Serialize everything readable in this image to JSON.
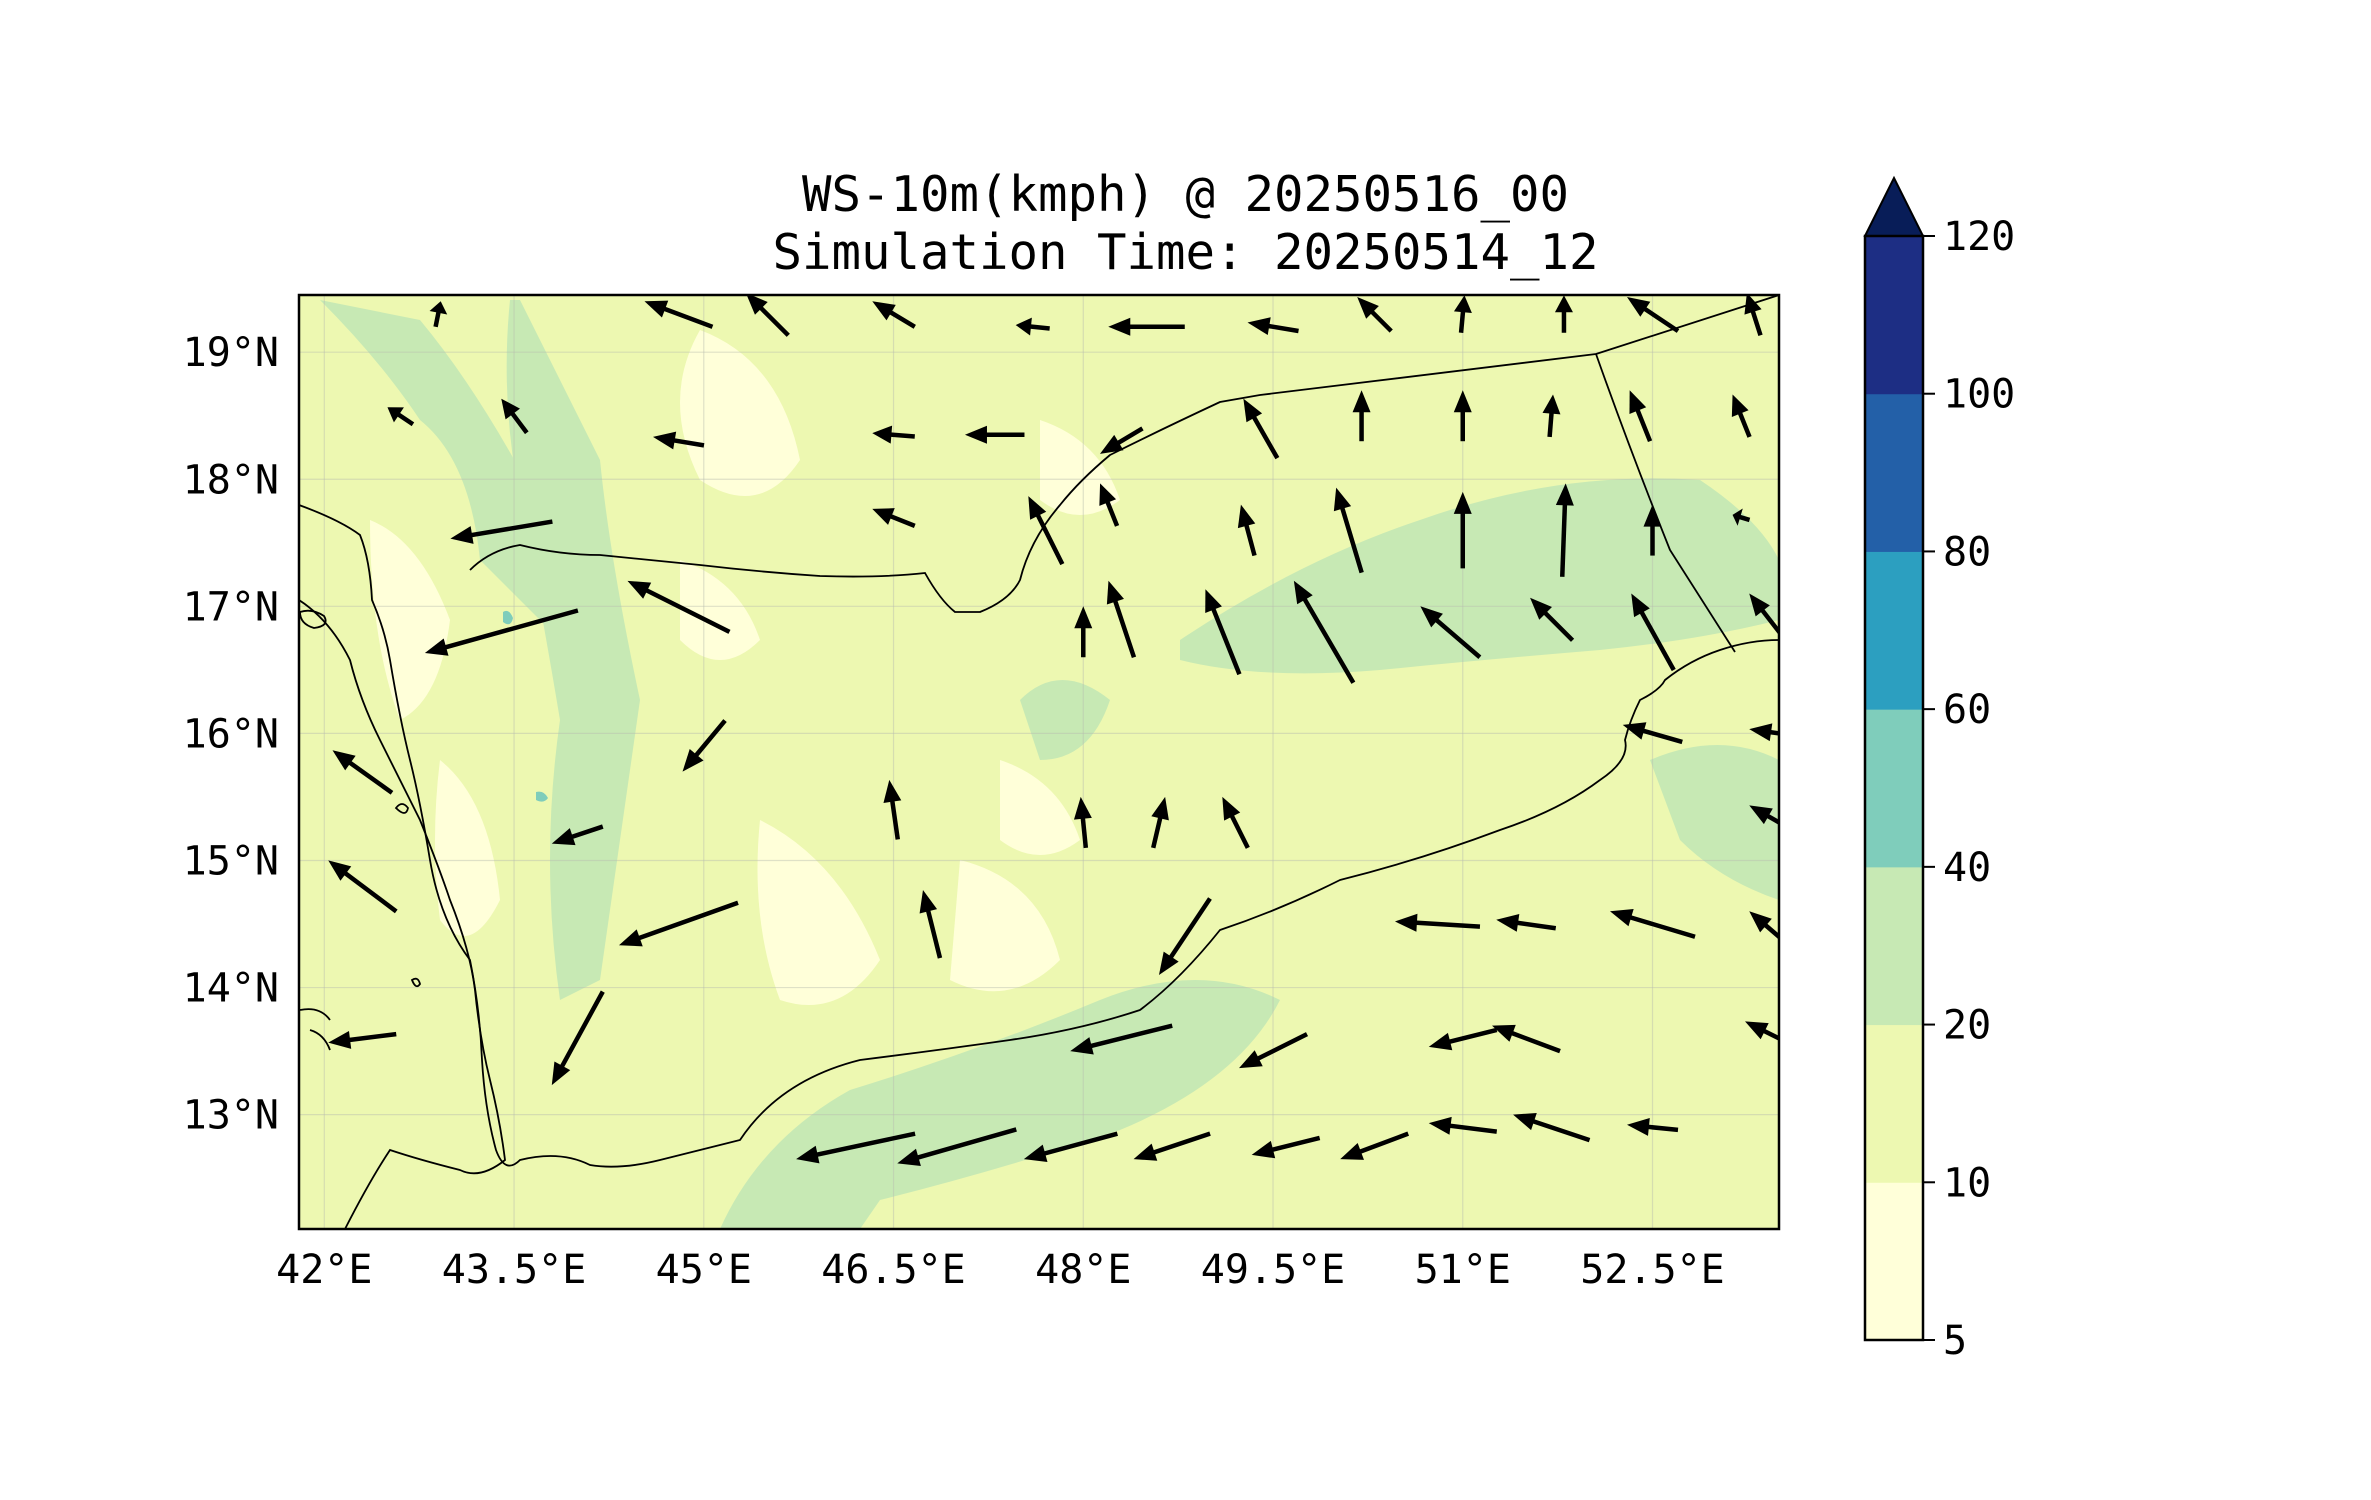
{
  "title": {
    "line1": "WS-10m(kmph) @ 20250516_00",
    "line2": "Simulation Time: 20250514_12"
  },
  "map": {
    "lon_range": [
      41.8,
      53.5
    ],
    "lat_range": [
      12.1,
      19.45
    ],
    "x_ticks": [
      {
        "value": 42.0,
        "label": "42°E"
      },
      {
        "value": 43.5,
        "label": "43.5°E"
      },
      {
        "value": 45.0,
        "label": "45°E"
      },
      {
        "value": 46.5,
        "label": "46.5°E"
      },
      {
        "value": 48.0,
        "label": "48°E"
      },
      {
        "value": 49.5,
        "label": "49.5°E"
      },
      {
        "value": 51.0,
        "label": "51°E"
      },
      {
        "value": 52.5,
        "label": "52.5°E"
      }
    ],
    "y_ticks": [
      {
        "value": 13,
        "label": "13°N"
      },
      {
        "value": 14,
        "label": "14°N"
      },
      {
        "value": 15,
        "label": "15°N"
      },
      {
        "value": 16,
        "label": "16°N"
      },
      {
        "value": 17,
        "label": "17°N"
      },
      {
        "value": 18,
        "label": "18°N"
      },
      {
        "value": 19,
        "label": "19°N"
      }
    ],
    "gridlines": true
  },
  "colorbar": {
    "levels": [
      5,
      10,
      20,
      40,
      60,
      80,
      100,
      120
    ],
    "labels": [
      "5",
      "10",
      "20",
      "40",
      "60",
      "80",
      "100",
      "120"
    ],
    "colors": [
      "#ffffd9",
      "#edf8b1",
      "#c7e9b4",
      "#7fcdbb",
      "#2c9fc0",
      "#2360a8",
      "#1d2e84"
    ],
    "extend_color": "#081d58",
    "extend": "max"
  },
  "chart_data": {
    "type": "quiver-map",
    "variable": "WS-10m",
    "units": "kmph",
    "valid_time": "20250516_00",
    "simulation_time": "20250514_12",
    "vectors": [
      {
        "lon": 42.9,
        "lat": 19.3,
        "u": 0.3,
        "v": 1.5
      },
      {
        "lon": 44.8,
        "lat": 19.3,
        "u": -4.0,
        "v": 1.5
      },
      {
        "lon": 45.5,
        "lat": 19.3,
        "u": -2.5,
        "v": 2.5
      },
      {
        "lon": 46.5,
        "lat": 19.3,
        "u": -2.5,
        "v": 1.5
      },
      {
        "lon": 47.6,
        "lat": 19.2,
        "u": -2.0,
        "v": 0.2
      },
      {
        "lon": 48.5,
        "lat": 19.2,
        "u": -4.5,
        "v": 0.0
      },
      {
        "lon": 49.5,
        "lat": 19.2,
        "u": -3.0,
        "v": 0.5
      },
      {
        "lon": 50.3,
        "lat": 19.3,
        "u": -2.0,
        "v": 2.0
      },
      {
        "lon": 51.0,
        "lat": 19.3,
        "u": 0.2,
        "v": 2.2
      },
      {
        "lon": 51.8,
        "lat": 19.3,
        "u": 0.0,
        "v": 2.2
      },
      {
        "lon": 52.5,
        "lat": 19.3,
        "u": -3.0,
        "v": 2.0
      },
      {
        "lon": 53.3,
        "lat": 19.3,
        "u": -0.8,
        "v": 2.5
      },
      {
        "lon": 42.6,
        "lat": 18.5,
        "u": -1.5,
        "v": 1.0
      },
      {
        "lon": 43.5,
        "lat": 18.5,
        "u": -1.5,
        "v": 2.0
      },
      {
        "lon": 44.8,
        "lat": 18.3,
        "u": -3.0,
        "v": 0.5
      },
      {
        "lon": 46.5,
        "lat": 18.35,
        "u": -2.5,
        "v": 0.2
      },
      {
        "lon": 47.3,
        "lat": 18.35,
        "u": -3.5,
        "v": 0.0
      },
      {
        "lon": 48.3,
        "lat": 18.3,
        "u": -2.5,
        "v": -1.5
      },
      {
        "lon": 49.4,
        "lat": 18.4,
        "u": -2.0,
        "v": 3.5
      },
      {
        "lon": 50.2,
        "lat": 18.5,
        "u": 0.0,
        "v": 3.0
      },
      {
        "lon": 51.0,
        "lat": 18.5,
        "u": 0.0,
        "v": 3.0
      },
      {
        "lon": 51.7,
        "lat": 18.5,
        "u": 0.2,
        "v": 2.5
      },
      {
        "lon": 52.4,
        "lat": 18.5,
        "u": -1.2,
        "v": 3.0
      },
      {
        "lon": 53.2,
        "lat": 18.5,
        "u": -1.0,
        "v": 2.5
      },
      {
        "lon": 43.4,
        "lat": 17.6,
        "u": -6.0,
        "v": -1.0
      },
      {
        "lon": 46.5,
        "lat": 17.7,
        "u": -2.5,
        "v": 1.0
      },
      {
        "lon": 47.7,
        "lat": 17.6,
        "u": -2.0,
        "v": 4.0
      },
      {
        "lon": 48.2,
        "lat": 17.8,
        "u": -1.0,
        "v": 2.5
      },
      {
        "lon": 49.3,
        "lat": 17.6,
        "u": -0.8,
        "v": 3.0
      },
      {
        "lon": 50.1,
        "lat": 17.6,
        "u": -1.5,
        "v": 5.0
      },
      {
        "lon": 51.0,
        "lat": 17.6,
        "u": 0.0,
        "v": 4.5
      },
      {
        "lon": 51.8,
        "lat": 17.6,
        "u": 0.2,
        "v": 5.5
      },
      {
        "lon": 52.5,
        "lat": 17.6,
        "u": 0.0,
        "v": 3.0
      },
      {
        "lon": 53.2,
        "lat": 17.7,
        "u": -1.0,
        "v": 0.3
      },
      {
        "lon": 44.8,
        "lat": 17.0,
        "u": -6.0,
        "v": 3.0
      },
      {
        "lon": 43.4,
        "lat": 16.8,
        "u": -9.0,
        "v": -2.5
      },
      {
        "lon": 48.0,
        "lat": 16.8,
        "u": 0.0,
        "v": 3.0
      },
      {
        "lon": 48.3,
        "lat": 16.9,
        "u": -1.5,
        "v": 4.5
      },
      {
        "lon": 49.1,
        "lat": 16.8,
        "u": -2.0,
        "v": 5.0
      },
      {
        "lon": 49.9,
        "lat": 16.8,
        "u": -3.5,
        "v": 6.0
      },
      {
        "lon": 50.9,
        "lat": 16.8,
        "u": -3.5,
        "v": 3.0
      },
      {
        "lon": 51.7,
        "lat": 16.9,
        "u": -2.5,
        "v": 2.5
      },
      {
        "lon": 52.5,
        "lat": 16.8,
        "u": -2.5,
        "v": 4.5
      },
      {
        "lon": 53.5,
        "lat": 16.8,
        "u": -3.5,
        "v": 4.5
      },
      {
        "lon": 42.3,
        "lat": 15.7,
        "u": -3.5,
        "v": 2.5
      },
      {
        "lon": 45.0,
        "lat": 15.9,
        "u": -2.5,
        "v": -3.0
      },
      {
        "lon": 46.5,
        "lat": 15.4,
        "u": -0.5,
        "v": 3.5
      },
      {
        "lon": 48.0,
        "lat": 15.3,
        "u": -0.3,
        "v": 3.0
      },
      {
        "lon": 48.6,
        "lat": 15.3,
        "u": 0.7,
        "v": 3.0
      },
      {
        "lon": 49.2,
        "lat": 15.3,
        "u": -1.5,
        "v": 3.0
      },
      {
        "lon": 52.5,
        "lat": 16.0,
        "u": -3.5,
        "v": 1.0
      },
      {
        "lon": 53.5,
        "lat": 16.0,
        "u": -3.5,
        "v": 0.5
      },
      {
        "lon": 53.5,
        "lat": 15.3,
        "u": -3.5,
        "v": 2.0
      },
      {
        "lon": 42.3,
        "lat": 14.8,
        "u": -4.0,
        "v": 3.0
      },
      {
        "lon": 44.0,
        "lat": 15.2,
        "u": -3.0,
        "v": -1.0
      },
      {
        "lon": 46.8,
        "lat": 14.5,
        "u": -1.0,
        "v": 4.0
      },
      {
        "lon": 48.8,
        "lat": 14.4,
        "u": -3.0,
        "v": -4.5
      },
      {
        "lon": 50.8,
        "lat": 14.5,
        "u": -5.0,
        "v": 0.3
      },
      {
        "lon": 51.5,
        "lat": 14.5,
        "u": -3.5,
        "v": 0.5
      },
      {
        "lon": 52.5,
        "lat": 14.5,
        "u": -5.0,
        "v": 1.5
      },
      {
        "lon": 53.5,
        "lat": 14.4,
        "u": -3.5,
        "v": 3.0
      },
      {
        "lon": 44.8,
        "lat": 14.5,
        "u": -7.0,
        "v": -2.5
      },
      {
        "lon": 42.3,
        "lat": 13.6,
        "u": -4.0,
        "v": -0.5
      },
      {
        "lon": 44.0,
        "lat": 13.6,
        "u": -3.0,
        "v": -5.5
      },
      {
        "lon": 48.3,
        "lat": 13.6,
        "u": -6.0,
        "v": -1.5
      },
      {
        "lon": 49.5,
        "lat": 13.5,
        "u": -4.0,
        "v": -2.0
      },
      {
        "lon": 51.0,
        "lat": 13.6,
        "u": -4.0,
        "v": -1.0
      },
      {
        "lon": 51.5,
        "lat": 13.6,
        "u": -4.0,
        "v": 1.5
      },
      {
        "lon": 53.5,
        "lat": 13.6,
        "u": -4.0,
        "v": 2.0
      },
      {
        "lon": 46.2,
        "lat": 12.75,
        "u": -7.0,
        "v": -1.5
      },
      {
        "lon": 47.0,
        "lat": 12.75,
        "u": -7.0,
        "v": -2.0
      },
      {
        "lon": 47.9,
        "lat": 12.75,
        "u": -5.5,
        "v": -1.5
      },
      {
        "lon": 48.7,
        "lat": 12.75,
        "u": -4.5,
        "v": -1.5
      },
      {
        "lon": 49.6,
        "lat": 12.75,
        "u": -4.0,
        "v": -1.0
      },
      {
        "lon": 50.3,
        "lat": 12.75,
        "u": -4.0,
        "v": -1.5
      },
      {
        "lon": 51.0,
        "lat": 12.9,
        "u": -4.0,
        "v": 0.5
      },
      {
        "lon": 51.7,
        "lat": 12.9,
        "u": -4.5,
        "v": 1.5
      },
      {
        "lon": 52.5,
        "lat": 12.9,
        "u": -3.0,
        "v": 0.3
      }
    ]
  }
}
